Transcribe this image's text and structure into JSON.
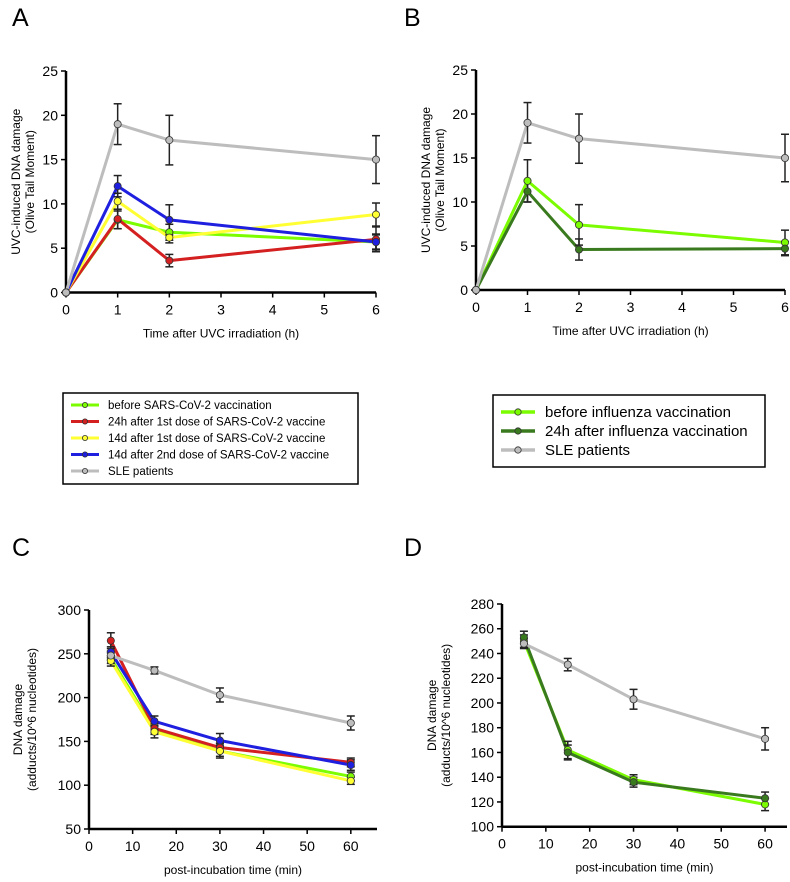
{
  "figure": {
    "panel_letters": [
      "A",
      "B",
      "C",
      "D"
    ]
  },
  "colors": {
    "light_green": "#7CFC00",
    "red": "#D42020",
    "yellow": "#FFFF33",
    "blue": "#1F1FE0",
    "gray": "#BDBDBD",
    "dark_green": "#3A7A1E",
    "error_bar": "#222222",
    "axis": "#000000"
  },
  "chart_data": [
    {
      "panel": "A",
      "type": "line",
      "title": "",
      "xlabel": "Time after UVC irradiation (h)",
      "ylabel": "UVC-induced DNA damage\n(Olive Tail Moment)",
      "ylabel_lines": [
        "UVC-induced DNA damage",
        "(Olive Tail Moment)"
      ],
      "xlim": [
        0,
        6
      ],
      "ylim": [
        0,
        25
      ],
      "xticks": [
        0,
        1,
        2,
        3,
        4,
        5,
        6
      ],
      "yticks": [
        0,
        5,
        10,
        15,
        20,
        25
      ],
      "grid": false,
      "legend_position": "below",
      "x": [
        0,
        1,
        2,
        6
      ],
      "series": [
        {
          "name": "before SARS-CoV-2 vaccination",
          "color_key": "light_green",
          "marker_fill": "#7CFC00",
          "values": [
            0,
            8.2,
            6.8,
            5.7
          ],
          "errors": [
            0,
            1.0,
            0.9,
            0.8
          ]
        },
        {
          "name": "24h after 1st dose of SARS-CoV-2 vaccine",
          "color_key": "red",
          "marker_fill": "#D42020",
          "values": [
            0,
            8.3,
            3.6,
            6.0
          ],
          "errors": [
            0,
            1.1,
            0.7,
            1.4
          ]
        },
        {
          "name": "14d after 1st dose of SARS-CoV-2 vaccine",
          "color_key": "yellow",
          "marker_fill": "#FFFF33",
          "values": [
            0,
            10.3,
            6.2,
            8.8
          ],
          "errors": [
            0,
            0.9,
            0.6,
            1.3
          ]
        },
        {
          "name": "14d after 2nd dose of SARS-CoV-2 vaccine",
          "color_key": "blue",
          "marker_fill": "#1F1FE0",
          "values": [
            0,
            12.0,
            8.2,
            5.7
          ],
          "errors": [
            0,
            1.2,
            1.7,
            0.9
          ]
        },
        {
          "name": "SLE patients",
          "color_key": "gray",
          "marker_fill": "#BDBDBD",
          "values": [
            0,
            19.0,
            17.2,
            15.0
          ],
          "errors": [
            0,
            2.3,
            2.8,
            2.7
          ]
        }
      ]
    },
    {
      "panel": "B",
      "type": "line",
      "title": "",
      "xlabel": "Time after UVC irradiation (h)",
      "ylabel": "UVC-induced DNA damage\n(Olive Tail Moment)",
      "ylabel_lines": [
        "UVC-induced DNA damage",
        "(Olive Tail Moment)"
      ],
      "xlim": [
        0,
        6
      ],
      "ylim": [
        0,
        25
      ],
      "xticks": [
        0,
        1,
        2,
        3,
        4,
        5,
        6
      ],
      "yticks": [
        0,
        5,
        10,
        15,
        20,
        25
      ],
      "grid": false,
      "legend_position": "below",
      "x": [
        0,
        1,
        2,
        6
      ],
      "series": [
        {
          "name": "before influenza vaccination",
          "color_key": "light_green",
          "marker_fill": "#7CFC00",
          "values": [
            0,
            12.4,
            7.4,
            5.4
          ],
          "errors": [
            0,
            2.4,
            2.3,
            1.4
          ]
        },
        {
          "name": "24h after influenza vaccination",
          "color_key": "dark_green",
          "marker_fill": "#3A7A1E",
          "values": [
            0,
            11.2,
            4.6,
            4.7
          ],
          "errors": [
            0,
            1.2,
            1.2,
            0.8
          ]
        },
        {
          "name": "SLE patients",
          "color_key": "gray",
          "marker_fill": "#BDBDBD",
          "values": [
            0,
            19.0,
            17.2,
            15.0
          ],
          "errors": [
            0,
            2.3,
            2.8,
            2.7
          ]
        }
      ]
    },
    {
      "panel": "C",
      "type": "line",
      "title": "",
      "xlabel": "post-incubation time (min)",
      "ylabel": "DNA damage\n(adducts/10^6 nucleotides)",
      "ylabel_lines": [
        "DNA damage",
        "(adducts/10^6 nucleotides)"
      ],
      "xlim": [
        0,
        66
      ],
      "ylim": [
        50,
        300
      ],
      "xticks": [
        0,
        10,
        20,
        30,
        40,
        50,
        60
      ],
      "yticks": [
        50,
        100,
        150,
        200,
        250,
        300
      ],
      "grid": false,
      "legend_position": "none",
      "x": [
        5,
        15,
        30,
        60
      ],
      "series": [
        {
          "name": "before SARS-CoV-2 vaccination",
          "color_key": "light_green",
          "marker_fill": "#7CFC00",
          "values": [
            245,
            163,
            139,
            110
          ],
          "errors": [
            6,
            5,
            6,
            5
          ]
        },
        {
          "name": "24h after 1st dose of SARS-CoV-2 vaccine",
          "color_key": "red",
          "marker_fill": "#D42020",
          "values": [
            265,
            165,
            143,
            126
          ],
          "errors": [
            9,
            5,
            5,
            5
          ]
        },
        {
          "name": "14d after 1st dose of SARS-CoV-2 vaccine",
          "color_key": "yellow",
          "marker_fill": "#FFFF33",
          "values": [
            242,
            161,
            139,
            105
          ],
          "errors": [
            6,
            7,
            8,
            4
          ]
        },
        {
          "name": "14d after 2nd dose of SARS-CoV-2 vaccine",
          "color_key": "blue",
          "marker_fill": "#1F1FE0",
          "values": [
            252,
            173,
            151,
            123
          ],
          "errors": [
            6,
            6,
            8,
            6
          ]
        },
        {
          "name": "SLE patients",
          "color_key": "gray",
          "marker_fill": "#BDBDBD",
          "values": [
            248,
            231,
            203,
            171
          ],
          "errors": [
            5,
            4,
            8,
            8
          ]
        }
      ]
    },
    {
      "panel": "D",
      "type": "line",
      "title": "",
      "xlabel": "post-incubation time (min)",
      "ylabel": "DNA damage\n(adducts/10^6 nucleotides)",
      "ylabel_lines": [
        "DNA damage",
        "(adducts/10^6 nucleotides)"
      ],
      "xlim": [
        0,
        65
      ],
      "ylim": [
        100,
        280
      ],
      "xticks": [
        0,
        10,
        20,
        30,
        40,
        50,
        60
      ],
      "yticks": [
        100,
        120,
        140,
        160,
        180,
        200,
        220,
        240,
        260,
        280
      ],
      "grid": false,
      "legend_position": "none",
      "x": [
        5,
        15,
        30,
        60
      ],
      "series": [
        {
          "name": "before influenza vaccination",
          "color_key": "light_green",
          "marker_fill": "#7CFC00",
          "values": [
            250,
            162,
            138,
            118
          ],
          "errors": [
            5,
            7,
            4,
            5
          ]
        },
        {
          "name": "24h after influenza vaccination",
          "color_key": "dark_green",
          "marker_fill": "#3A7A1E",
          "values": [
            253,
            160,
            136,
            123
          ],
          "errors": [
            5,
            6,
            4,
            5
          ]
        },
        {
          "name": "SLE patients",
          "color_key": "gray",
          "marker_fill": "#BDBDBD",
          "values": [
            248,
            231,
            203,
            171
          ],
          "errors": [
            4,
            5,
            8,
            9
          ]
        }
      ]
    }
  ],
  "legends": {
    "A": [
      "before SARS-CoV-2 vaccination",
      "24h after 1st dose of SARS-CoV-2 vaccine",
      "14d after 1st dose of SARS-CoV-2 vaccine",
      "14d after 2nd dose of SARS-CoV-2 vaccine",
      "SLE patients"
    ],
    "B": [
      "before influenza vaccination",
      "24h after influenza vaccination",
      "SLE patients"
    ]
  }
}
